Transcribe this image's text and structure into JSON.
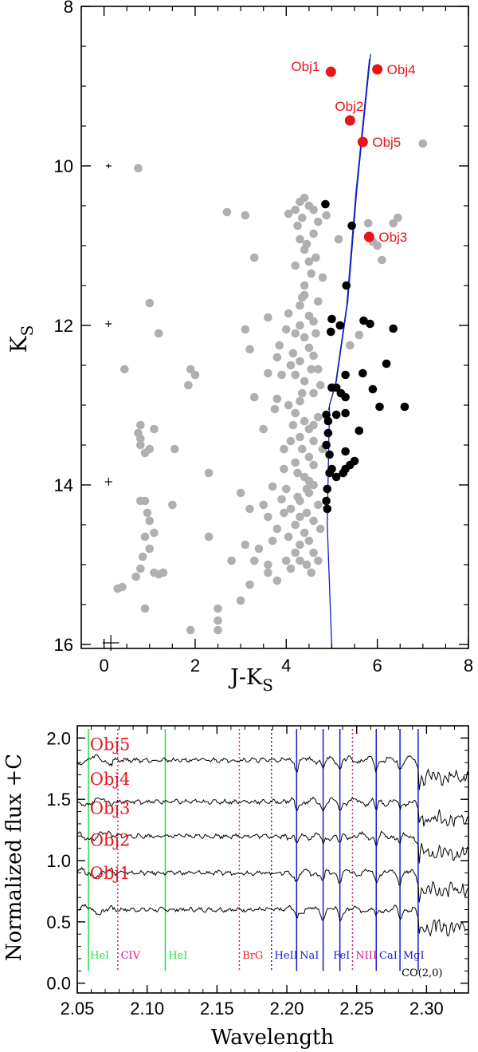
{
  "chart_data": [
    {
      "type": "scatter",
      "xlabel": "J-K",
      "xlabel_sub": "S",
      "ylabel": "K",
      "ylabel_sub": "S",
      "xlim": [
        -0.5,
        8
      ],
      "ylim": [
        16.05,
        8
      ],
      "y_inverted": true,
      "x_ticks": [
        "0",
        "2",
        "4",
        "6",
        "8"
      ],
      "x_tick_values": [
        0,
        2,
        4,
        6,
        8
      ],
      "y_ticks": [
        "8",
        "10",
        "12",
        "14",
        "16"
      ],
      "y_tick_values": [
        8,
        10,
        12,
        14,
        16
      ],
      "colors": {
        "field": "#b0b0b0",
        "member": "#000000",
        "object": "#e8141c",
        "isochrone": "#1020c0"
      },
      "error_bars": [
        {
          "x": 0.1,
          "y": 10.0,
          "xerr": 0.06,
          "yerr": 0.03
        },
        {
          "x": 0.1,
          "y": 11.98,
          "xerr": 0.07,
          "yerr": 0.04
        },
        {
          "x": 0.1,
          "y": 13.96,
          "xerr": 0.08,
          "yerr": 0.05
        },
        {
          "x": 0.15,
          "y": 15.98,
          "xerr": 0.18,
          "yerr": 0.1
        }
      ],
      "objects": [
        {
          "name": "Obj1",
          "x": 4.98,
          "y": 8.82,
          "label_side": "left"
        },
        {
          "name": "Obj2",
          "x": 5.4,
          "y": 9.43,
          "label_side": "above"
        },
        {
          "name": "Obj3",
          "x": 5.82,
          "y": 10.89,
          "label_side": "right"
        },
        {
          "name": "Obj4",
          "x": 6.0,
          "y": 8.79,
          "label_side": "right"
        },
        {
          "name": "Obj5",
          "x": 5.68,
          "y": 9.7,
          "label_side": "right"
        }
      ],
      "members": [
        [
          4.86,
          10.48
        ],
        [
          5.44,
          10.75
        ],
        [
          5.32,
          11.5
        ],
        [
          5.0,
          11.92
        ],
        [
          4.98,
          12.08
        ],
        [
          5.18,
          12.0
        ],
        [
          5.84,
          11.98
        ],
        [
          6.35,
          12.04
        ],
        [
          5.7,
          11.94
        ],
        [
          5.3,
          12.62
        ],
        [
          5.0,
          12.78
        ],
        [
          5.1,
          12.78
        ],
        [
          5.2,
          12.85
        ],
        [
          5.3,
          12.9
        ],
        [
          5.68,
          12.6
        ],
        [
          6.2,
          12.48
        ],
        [
          5.9,
          12.8
        ],
        [
          6.05,
          13.02
        ],
        [
          6.6,
          13.02
        ],
        [
          4.88,
          13.12
        ],
        [
          4.92,
          13.2
        ],
        [
          4.92,
          13.35
        ],
        [
          4.88,
          13.5
        ],
        [
          5.1,
          13.12
        ],
        [
          5.3,
          13.1
        ],
        [
          5.6,
          13.32
        ],
        [
          4.95,
          13.62
        ],
        [
          5.3,
          13.58
        ],
        [
          5.5,
          13.7
        ],
        [
          5.4,
          13.75
        ],
        [
          5.0,
          13.8
        ],
        [
          5.3,
          13.8
        ],
        [
          4.95,
          13.85
        ],
        [
          4.9,
          14.05
        ],
        [
          4.88,
          14.2
        ],
        [
          4.9,
          14.3
        ],
        [
          5.1,
          13.9
        ],
        [
          5.25,
          13.85
        ]
      ],
      "field": [
        [
          0.75,
          10.03
        ],
        [
          7.0,
          9.72
        ],
        [
          4.88,
          10.62
        ],
        [
          4.4,
          10.4
        ],
        [
          4.3,
          10.45
        ],
        [
          4.5,
          10.5
        ],
        [
          4.2,
          10.55
        ],
        [
          4.6,
          10.55
        ],
        [
          4.35,
          10.65
        ],
        [
          4.05,
          10.6
        ],
        [
          4.7,
          10.7
        ],
        [
          4.25,
          10.75
        ],
        [
          2.7,
          10.58
        ],
        [
          3.1,
          10.62
        ],
        [
          5.8,
          10.72
        ],
        [
          6.35,
          10.72
        ],
        [
          6.0,
          11.0
        ],
        [
          6.1,
          11.18
        ],
        [
          5.9,
          10.95
        ],
        [
          4.3,
          10.92
        ],
        [
          4.45,
          10.98
        ],
        [
          4.5,
          11.2
        ],
        [
          4.55,
          11.35
        ],
        [
          4.4,
          11.5
        ],
        [
          4.35,
          11.65
        ],
        [
          4.3,
          11.75
        ],
        [
          4.65,
          11.15
        ],
        [
          4.2,
          11.25
        ],
        [
          4.8,
          11.4
        ],
        [
          3.3,
          11.15
        ],
        [
          1.0,
          11.72
        ],
        [
          4.4,
          11.62
        ],
        [
          4.5,
          11.88
        ],
        [
          4.6,
          11.95
        ],
        [
          3.6,
          11.9
        ],
        [
          1.2,
          12.1
        ],
        [
          3.1,
          12.05
        ],
        [
          3.2,
          12.3
        ],
        [
          4.0,
          12.05
        ],
        [
          4.2,
          12.1
        ],
        [
          4.4,
          12.15
        ],
        [
          4.5,
          12.28
        ],
        [
          4.6,
          12.38
        ],
        [
          4.3,
          12.45
        ],
        [
          4.1,
          12.5
        ],
        [
          4.7,
          12.55
        ],
        [
          5.6,
          12.12
        ],
        [
          5.4,
          12.25
        ],
        [
          4.2,
          12.62
        ],
        [
          4.4,
          12.7
        ],
        [
          4.6,
          12.85
        ],
        [
          4.3,
          12.95
        ],
        [
          4.05,
          13.0
        ],
        [
          1.9,
          12.55
        ],
        [
          2.0,
          12.62
        ],
        [
          1.85,
          12.75
        ],
        [
          0.45,
          12.55
        ],
        [
          3.3,
          12.9
        ],
        [
          3.8,
          12.92
        ],
        [
          4.2,
          13.1
        ],
        [
          4.4,
          13.2
        ],
        [
          4.5,
          13.3
        ],
        [
          4.6,
          13.25
        ],
        [
          4.7,
          13.15
        ],
        [
          4.3,
          13.4
        ],
        [
          4.1,
          13.45
        ],
        [
          3.5,
          13.3
        ],
        [
          0.75,
          13.35
        ],
        [
          0.8,
          13.42
        ],
        [
          0.8,
          13.5
        ],
        [
          0.9,
          13.6
        ],
        [
          1.0,
          13.55
        ],
        [
          0.8,
          13.25
        ],
        [
          1.1,
          13.3
        ],
        [
          1.55,
          13.55
        ],
        [
          4.35,
          13.55
        ],
        [
          4.5,
          13.65
        ],
        [
          4.6,
          13.75
        ],
        [
          4.2,
          13.72
        ],
        [
          3.95,
          13.8
        ],
        [
          4.4,
          13.9
        ],
        [
          4.6,
          14.0
        ],
        [
          4.5,
          14.1
        ],
        [
          4.3,
          14.2
        ],
        [
          4.1,
          14.3
        ],
        [
          3.9,
          14.18
        ],
        [
          4.45,
          14.35
        ],
        [
          4.6,
          14.45
        ],
        [
          4.2,
          14.5
        ],
        [
          4.4,
          14.6
        ],
        [
          4.5,
          14.7
        ],
        [
          4.3,
          14.75
        ],
        [
          4.6,
          14.85
        ],
        [
          4.7,
          14.95
        ],
        [
          2.3,
          13.85
        ],
        [
          3.0,
          14.1
        ],
        [
          3.2,
          14.3
        ],
        [
          3.5,
          14.25
        ],
        [
          3.6,
          14.4
        ],
        [
          3.8,
          14.55
        ],
        [
          3.7,
          14.7
        ],
        [
          3.4,
          14.8
        ],
        [
          3.1,
          14.75
        ],
        [
          2.8,
          14.95
        ],
        [
          3.3,
          14.95
        ],
        [
          3.6,
          15.0
        ],
        [
          2.3,
          14.65
        ],
        [
          0.8,
          14.2
        ],
        [
          0.9,
          14.2
        ],
        [
          0.95,
          14.35
        ],
        [
          1.0,
          14.45
        ],
        [
          1.1,
          14.6
        ],
        [
          0.9,
          14.65
        ],
        [
          1.0,
          14.8
        ],
        [
          0.85,
          14.9
        ],
        [
          0.8,
          15.05
        ],
        [
          0.7,
          15.15
        ],
        [
          1.1,
          15.1
        ],
        [
          1.2,
          15.12
        ],
        [
          1.3,
          15.1
        ],
        [
          0.3,
          15.3
        ],
        [
          0.4,
          15.28
        ],
        [
          0.9,
          15.55
        ],
        [
          1.5,
          14.25
        ],
        [
          1.9,
          15.82
        ],
        [
          2.5,
          15.55
        ],
        [
          2.5,
          15.7
        ],
        [
          2.5,
          15.82
        ],
        [
          3.0,
          15.45
        ],
        [
          3.2,
          15.25
        ],
        [
          3.6,
          15.1
        ],
        [
          3.8,
          15.2
        ],
        [
          4.1,
          15.05
        ],
        [
          4.3,
          14.95
        ],
        [
          4.45,
          15.0
        ],
        [
          4.2,
          14.85
        ],
        [
          4.0,
          14.95
        ],
        [
          4.55,
          15.1
        ],
        [
          4.3,
          14.4
        ],
        [
          4.7,
          14.25
        ],
        [
          4.75,
          14.55
        ],
        [
          4.0,
          14.05
        ],
        [
          3.7,
          14.02
        ],
        [
          4.8,
          13.55
        ],
        [
          3.6,
          12.6
        ],
        [
          3.9,
          12.62
        ],
        [
          3.8,
          12.4
        ],
        [
          4.65,
          12.1
        ],
        [
          4.7,
          11.7
        ],
        [
          4.75,
          12.75
        ],
        [
          4.15,
          13.25
        ],
        [
          4.25,
          13.85
        ],
        [
          4.05,
          14.65
        ],
        [
          4.45,
          14.05
        ],
        [
          5.15,
          10.92
        ],
        [
          4.6,
          10.85
        ],
        [
          4.4,
          11.05
        ],
        [
          6.45,
          10.65
        ],
        [
          3.75,
          13.05
        ],
        [
          3.95,
          13.55
        ],
        [
          4.35,
          12.85
        ],
        [
          4.55,
          12.55
        ],
        [
          3.85,
          12.25
        ],
        [
          4.5,
          13.95
        ],
        [
          4.25,
          14.15
        ],
        [
          3.95,
          14.35
        ],
        [
          4.6,
          13.45
        ],
        [
          4.05,
          11.85
        ],
        [
          4.3,
          12.0
        ],
        [
          4.15,
          12.35
        ]
      ],
      "isochrone": [
        [
          5.0,
          16.05
        ],
        [
          4.9,
          14.5
        ],
        [
          4.95,
          13.0
        ],
        [
          5.1,
          12.7
        ],
        [
          5.35,
          11.7
        ],
        [
          5.55,
          10.3
        ],
        [
          5.62,
          9.9
        ],
        [
          5.85,
          8.6
        ]
      ]
    },
    {
      "type": "line",
      "xlabel": "Wavelength",
      "ylabel": "Normalized flux +C",
      "xlim": [
        2.05,
        2.33
      ],
      "ylim": [
        -0.08,
        2.1
      ],
      "x_ticks": [
        "2.05",
        "2.10",
        "2.15",
        "2.20",
        "2.25",
        "2.30"
      ],
      "x_tick_values": [
        2.05,
        2.1,
        2.15,
        2.2,
        2.25,
        2.3
      ],
      "y_ticks": [
        "0.0",
        "0.5",
        "1.0",
        "1.5",
        "2.0"
      ],
      "y_tick_values": [
        0.0,
        0.5,
        1.0,
        1.5,
        2.0
      ],
      "series": [
        {
          "name": "Obj1",
          "offset": 0.6,
          "label_y": 0.85
        },
        {
          "name": "Obj2",
          "offset": 0.9,
          "label_y": 1.12
        },
        {
          "name": "Obj3",
          "offset": 1.2,
          "label_y": 1.38
        },
        {
          "name": "Obj4",
          "offset": 1.48,
          "label_y": 1.62
        },
        {
          "name": "Obj5",
          "offset": 1.82,
          "label_y": 1.9
        }
      ],
      "spectral_lines": [
        {
          "label": "HeI",
          "x": 2.058,
          "style": "solid",
          "color": "#22dd44",
          "label_x": 2.058,
          "align": "start"
        },
        {
          "label": "CIV",
          "x": 2.079,
          "style": "dotted",
          "color": "#dd1488",
          "label_x": 2.08,
          "align": "start"
        },
        {
          "label": "HeI",
          "x": 2.113,
          "style": "solid",
          "color": "#22dd44",
          "label_x": 2.114,
          "align": "start"
        },
        {
          "label": "BrG",
          "x": 2.166,
          "style": "dotted",
          "color": "#ee2222",
          "label_x": 2.167,
          "align": "start"
        },
        {
          "label": "HeII",
          "x": 2.189,
          "style": "dotted",
          "color": "#1a1ad0",
          "label_x": 2.19,
          "align": "start"
        },
        {
          "label": "NaI",
          "x": 2.207,
          "style": "solid",
          "color": "#1a1ad0",
          "label_x": 2.208,
          "align": "start"
        },
        {
          "label": "",
          "x": 2.226,
          "style": "solid",
          "color": "#1a1ad0",
          "label_x": 2.226,
          "align": "start"
        },
        {
          "label": "FeI",
          "x": 2.238,
          "style": "solid",
          "color": "#1a1ad0",
          "label_x": 2.232,
          "align": "start"
        },
        {
          "label": "NIII",
          "x": 2.247,
          "style": "dotted",
          "color": "#dd1488",
          "label_x": 2.248,
          "align": "start"
        },
        {
          "label": "CaI",
          "x": 2.264,
          "style": "solid",
          "color": "#1a1ad0",
          "label_x": 2.265,
          "align": "start"
        },
        {
          "label": "MgI",
          "x": 2.281,
          "style": "solid",
          "color": "#1a1ad0",
          "label_x": 2.282,
          "align": "start"
        },
        {
          "label": "",
          "x": 2.294,
          "style": "solid",
          "color": "#1a1ad0",
          "label_x": 2.294,
          "align": "start"
        },
        {
          "label": "CO(2,0)",
          "x": 2.294,
          "style": "none",
          "color": "#000000",
          "label_x": 2.281,
          "align": "start",
          "row": 2
        }
      ]
    }
  ]
}
